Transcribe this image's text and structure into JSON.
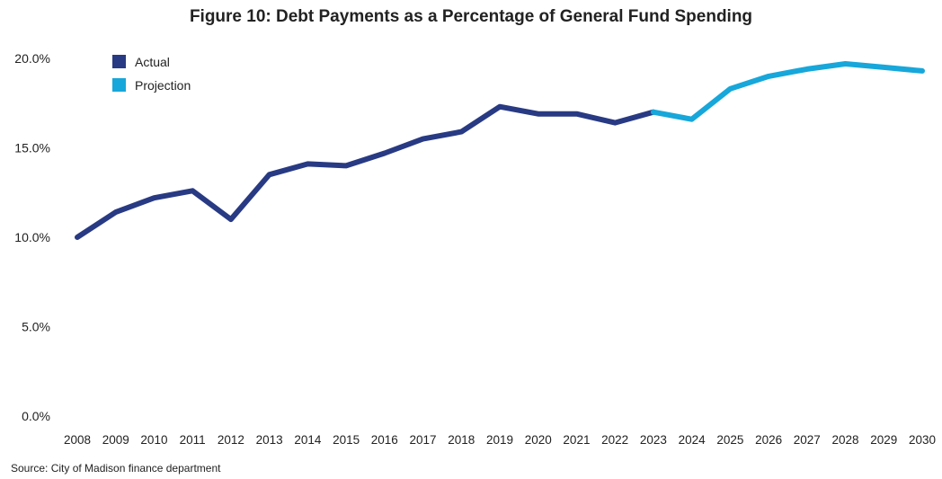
{
  "chart_data": {
    "type": "line",
    "title": "Figure 10: Debt Payments as a Percentage of General Fund Spending",
    "xlabel": "",
    "ylabel": "",
    "ylim": [
      0,
      20
    ],
    "yticks": [
      "0.0%",
      "5.0%",
      "10.0%",
      "15.0%",
      "20.0%"
    ],
    "ytick_values": [
      0,
      5,
      10,
      15,
      20
    ],
    "categories": [
      "2008",
      "2009",
      "2010",
      "2011",
      "2012",
      "2013",
      "2014",
      "2015",
      "2016",
      "2017",
      "2018",
      "2019",
      "2020",
      "2021",
      "2022",
      "2023",
      "2024",
      "2025",
      "2026",
      "2027",
      "2028",
      "2029",
      "2030"
    ],
    "series": [
      {
        "name": "Actual",
        "color": "#283a83",
        "x": [
          "2008",
          "2009",
          "2010",
          "2011",
          "2012",
          "2013",
          "2014",
          "2015",
          "2016",
          "2017",
          "2018",
          "2019",
          "2020",
          "2021",
          "2022",
          "2023"
        ],
        "values": [
          10.0,
          11.4,
          12.2,
          12.6,
          11.0,
          13.5,
          14.1,
          14.0,
          14.7,
          15.5,
          15.9,
          17.3,
          16.9,
          16.9,
          16.4,
          17.0
        ]
      },
      {
        "name": "Projection",
        "color": "#17a7da",
        "x": [
          "2023",
          "2024",
          "2025",
          "2026",
          "2027",
          "2028",
          "2029",
          "2030"
        ],
        "values": [
          17.0,
          16.6,
          18.3,
          19.0,
          19.4,
          19.7,
          19.5,
          19.3
        ]
      }
    ],
    "legend": "top-left",
    "grid": false,
    "source": "Source: City of Madison finance department"
  }
}
